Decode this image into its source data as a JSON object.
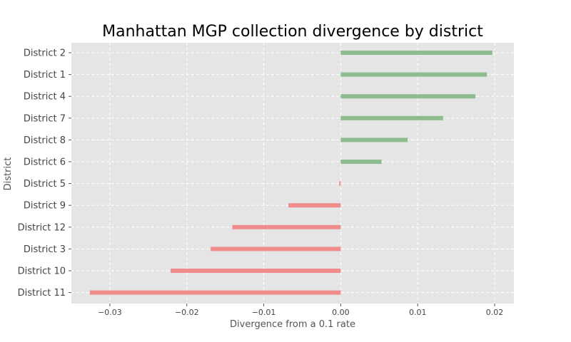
{
  "chart_data": {
    "type": "bar",
    "orientation": "horizontal",
    "title": "Manhattan MGP collection divergence by district",
    "xlabel": "Divergence from a 0.1 rate",
    "ylabel": "District",
    "categories": [
      "District 2",
      "District 1",
      "District 4",
      "District 7",
      "District 8",
      "District 6",
      "District 5",
      "District 9",
      "District 12",
      "District 3",
      "District 10",
      "District 11"
    ],
    "values": [
      0.0197,
      0.019,
      0.0175,
      0.0133,
      0.0087,
      0.0053,
      -0.0002,
      -0.0068,
      -0.0141,
      -0.0169,
      -0.0221,
      -0.0326
    ],
    "xlim": [
      -0.035,
      0.0225
    ],
    "xticks": [
      -0.03,
      -0.02,
      -0.01,
      0.0,
      0.01,
      0.02
    ],
    "xtick_labels": [
      "−0.03",
      "−0.02",
      "−0.01",
      "0.00",
      "0.01",
      "0.02"
    ],
    "grid": true,
    "colors": {
      "positive": "#8fbc8f",
      "negative": "#f08c8c",
      "background": "#e5e5e5",
      "grid": "#ffffff"
    }
  }
}
